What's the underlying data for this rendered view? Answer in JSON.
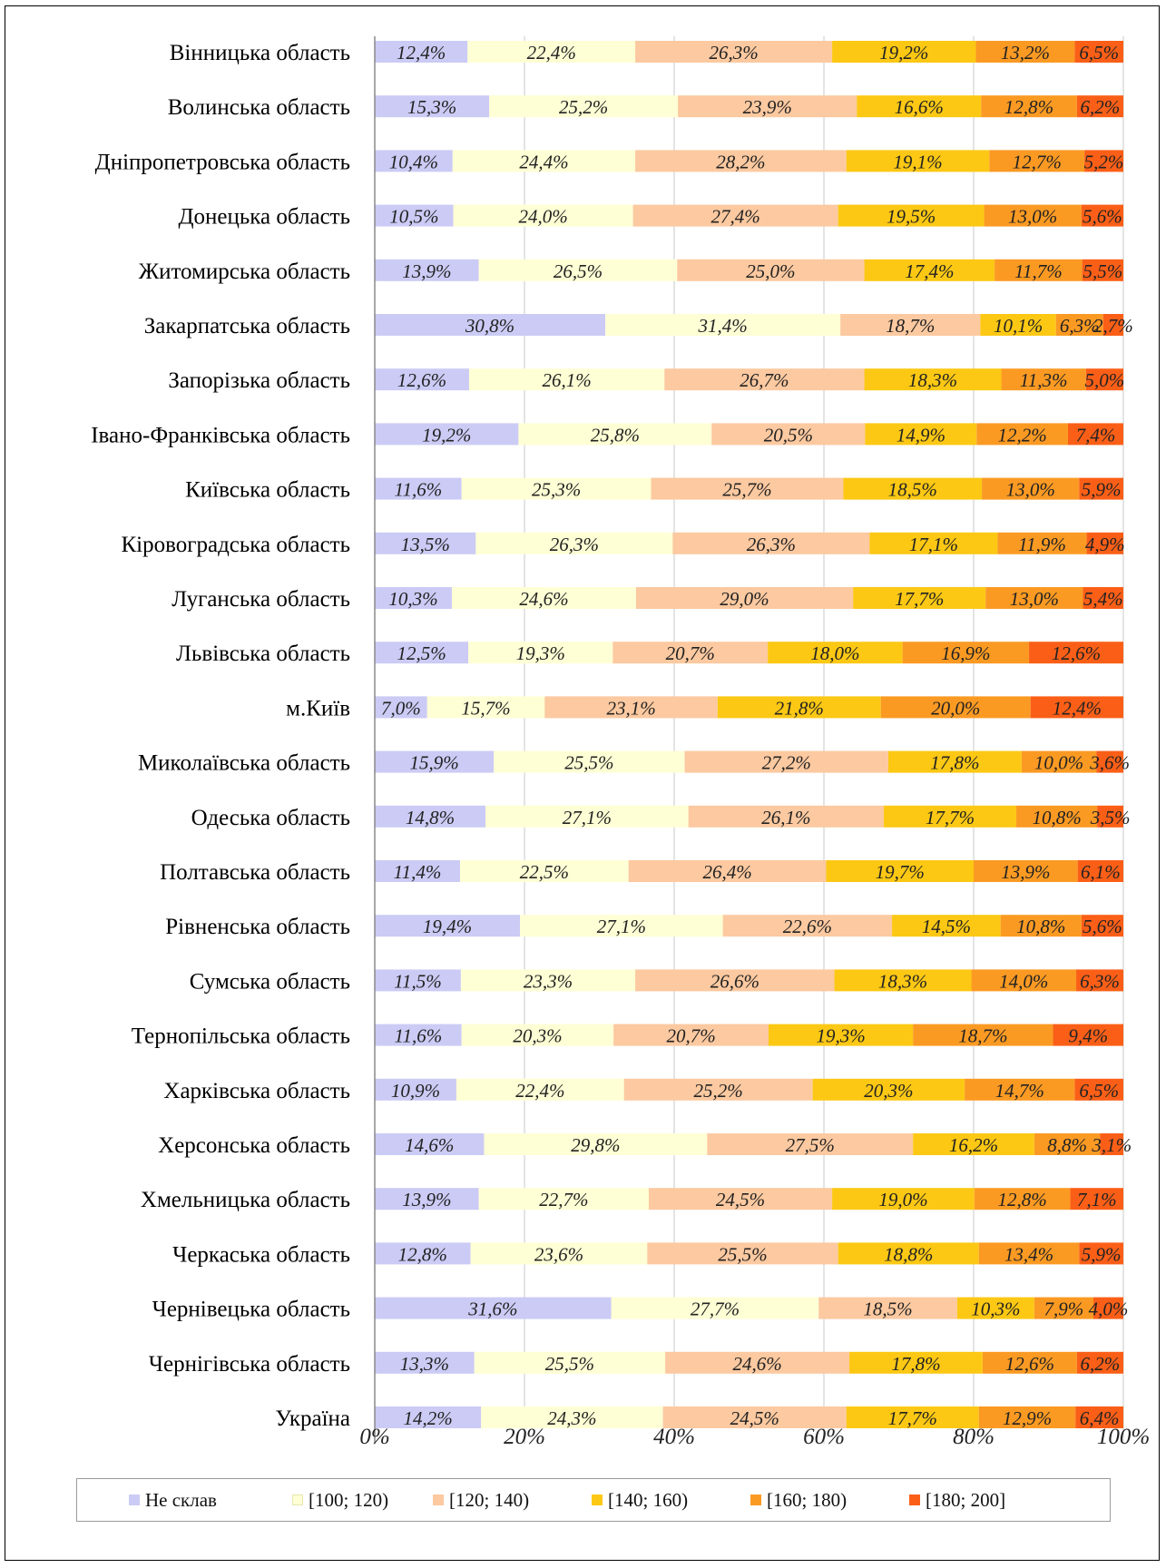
{
  "chart_data": {
    "type": "bar",
    "orientation": "horizontal",
    "stacked": "percent",
    "categories": [
      "Вінницька область",
      "Волинська область",
      "Дніпропетровська область",
      "Донецька область",
      "Житомирська область",
      "Закарпатська область",
      "Запорізька область",
      "Івано-Франківська область",
      "Київська область",
      "Кіровоградська область",
      "Луганська область",
      "Львівська область",
      "м.Київ",
      "Миколаївська область",
      "Одеська область",
      "Полтавська область",
      "Рівненська область",
      "Сумська область",
      "Тернопільська область",
      "Харківська область",
      "Херсонська область",
      "Хмельницька область",
      "Черкаська область",
      "Чернівецька область",
      "Чернігівська область",
      "Україна"
    ],
    "series": [
      {
        "name": "Не склав",
        "color": "#cbcbf5",
        "values": [
          12.4,
          15.3,
          10.4,
          10.5,
          13.9,
          30.8,
          12.6,
          19.2,
          11.6,
          13.5,
          10.3,
          12.5,
          7.0,
          15.9,
          14.8,
          11.4,
          19.4,
          11.5,
          11.6,
          10.9,
          14.6,
          13.9,
          12.8,
          31.6,
          13.3,
          14.2
        ]
      },
      {
        "name": "[100; 120)",
        "color": "#ffffd5",
        "values": [
          22.4,
          25.2,
          24.4,
          24.0,
          26.5,
          31.4,
          26.1,
          25.8,
          25.3,
          26.3,
          24.6,
          19.3,
          15.7,
          25.5,
          27.1,
          22.5,
          27.1,
          23.3,
          20.3,
          22.4,
          29.8,
          22.7,
          23.6,
          27.7,
          25.5,
          24.3
        ]
      },
      {
        "name": "[120; 140)",
        "color": "#fcc9a0",
        "values": [
          26.3,
          23.9,
          28.2,
          27.4,
          25.0,
          18.7,
          26.7,
          20.5,
          25.7,
          26.3,
          29.0,
          20.7,
          23.1,
          27.2,
          26.1,
          26.4,
          22.6,
          26.6,
          20.7,
          25.2,
          27.5,
          24.5,
          25.5,
          18.5,
          24.6,
          24.5
        ]
      },
      {
        "name": "[140; 160)",
        "color": "#fcc814",
        "values": [
          19.2,
          16.6,
          19.1,
          19.5,
          17.4,
          10.1,
          18.3,
          14.9,
          18.5,
          17.1,
          17.7,
          18.0,
          21.8,
          17.8,
          17.7,
          19.7,
          14.5,
          18.3,
          19.3,
          20.3,
          16.2,
          19.0,
          18.8,
          10.3,
          17.8,
          17.7
        ]
      },
      {
        "name": "[160; 180)",
        "color": "#fb9a23",
        "values": [
          13.2,
          12.8,
          12.7,
          13.0,
          11.7,
          6.3,
          11.3,
          12.2,
          13.0,
          11.9,
          13.0,
          16.9,
          20.0,
          10.0,
          10.8,
          13.9,
          10.8,
          14.0,
          18.7,
          14.7,
          8.8,
          12.8,
          13.4,
          7.9,
          12.6,
          12.9
        ]
      },
      {
        "name": "[180; 200]",
        "color": "#fb5f17",
        "values": [
          6.5,
          6.2,
          5.2,
          5.6,
          5.5,
          2.7,
          5.0,
          7.4,
          5.9,
          4.9,
          5.4,
          12.6,
          12.4,
          3.6,
          3.5,
          6.1,
          5.6,
          6.3,
          9.4,
          6.5,
          3.1,
          7.1,
          5.9,
          4.0,
          6.2,
          6.4
        ]
      }
    ],
    "value_suffix": "%",
    "xlim": [
      0,
      100
    ],
    "x_ticks": [
      "0%",
      "20%",
      "40%",
      "60%",
      "80%",
      "100%"
    ],
    "grid": "vertical",
    "legend_position": "bottom",
    "title": "",
    "xlabel": "",
    "ylabel": ""
  }
}
